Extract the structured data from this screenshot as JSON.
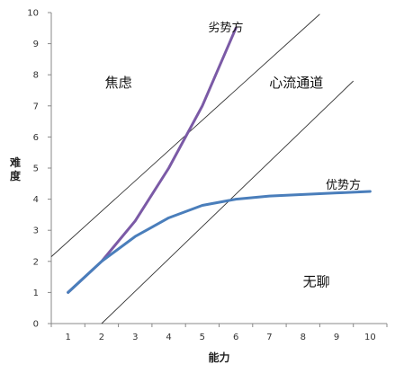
{
  "chart_data": {
    "type": "line",
    "xlabel": "能力",
    "ylabel": "难度",
    "xlim": [
      0.5,
      10.5
    ],
    "ylim": [
      0,
      10
    ],
    "x_ticks": [
      "1",
      "2",
      "3",
      "4",
      "5",
      "6",
      "7",
      "8",
      "9",
      "10"
    ],
    "y_ticks": [
      "0",
      "1",
      "2",
      "3",
      "4",
      "5",
      "6",
      "7",
      "8",
      "9",
      "10"
    ],
    "grid": false,
    "legend": "none",
    "series": [
      {
        "name": "劣势方",
        "color": "#7b5aa6",
        "x": [
          1,
          2,
          3,
          4,
          5,
          6
        ],
        "y": [
          1.0,
          2.0,
          3.3,
          5.0,
          7.0,
          9.5
        ]
      },
      {
        "name": "优势方",
        "color": "#4a7ebb",
        "x": [
          1,
          2,
          3,
          4,
          5,
          6,
          7,
          8,
          9,
          10
        ],
        "y": [
          1.0,
          2.0,
          2.8,
          3.4,
          3.8,
          4.0,
          4.1,
          4.15,
          4.2,
          4.25
        ]
      }
    ],
    "reference_lines": [
      {
        "name": "upper-boundary",
        "color": "#333333",
        "x": [
          0.5,
          8.5
        ],
        "y": [
          2.15,
          9.95
        ]
      },
      {
        "name": "lower-boundary",
        "color": "#333333",
        "x": [
          2.0,
          9.5
        ],
        "y": [
          0.0,
          7.8
        ]
      }
    ],
    "annotations": [
      {
        "text": "焦虑",
        "x": 2.5,
        "y": 7.6
      },
      {
        "text": "心流通道",
        "x": 7.8,
        "y": 7.6
      },
      {
        "text": "无聊",
        "x": 8.4,
        "y": 1.2
      }
    ]
  }
}
